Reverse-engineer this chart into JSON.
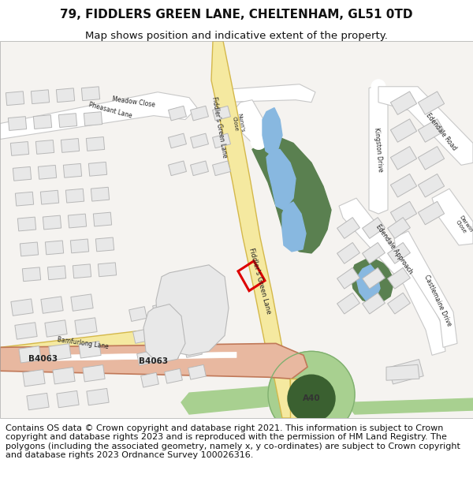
{
  "title_line1": "79, FIDDLERS GREEN LANE, CHELTENHAM, GL51 0TD",
  "title_line2": "Map shows position and indicative extent of the property.",
  "title_fontsize": 11,
  "subtitle_fontsize": 9.5,
  "footer_text": "Contains OS data © Crown copyright and database right 2021. This information is subject to Crown copyright and database rights 2023 and is reproduced with the permission of HM Land Registry. The polygons (including the associated geometry, namely x, y co-ordinates) are subject to Crown copyright and database rights 2023 Ordnance Survey 100026316.",
  "footer_fontsize": 8.0,
  "bg_color": "#ffffff",
  "map_bg": "#f5f3f0",
  "road_yellow": "#f5e9a0",
  "road_yellow_stroke": "#d4b84a",
  "road_salmon": "#e8b8a0",
  "road_salmon_stroke": "#c07858",
  "road_white": "#ffffff",
  "road_white_stroke": "#c8c8c8",
  "building_color": "#e8e8e8",
  "building_stroke": "#b8b8b8",
  "green_dark": "#5a8050",
  "green_light": "#b8d8a0",
  "green_roundabout": "#a8d090",
  "water_blue": "#88b8e0",
  "plot_red": "#dd0000",
  "figsize": [
    6.0,
    6.25
  ],
  "dpi": 100
}
